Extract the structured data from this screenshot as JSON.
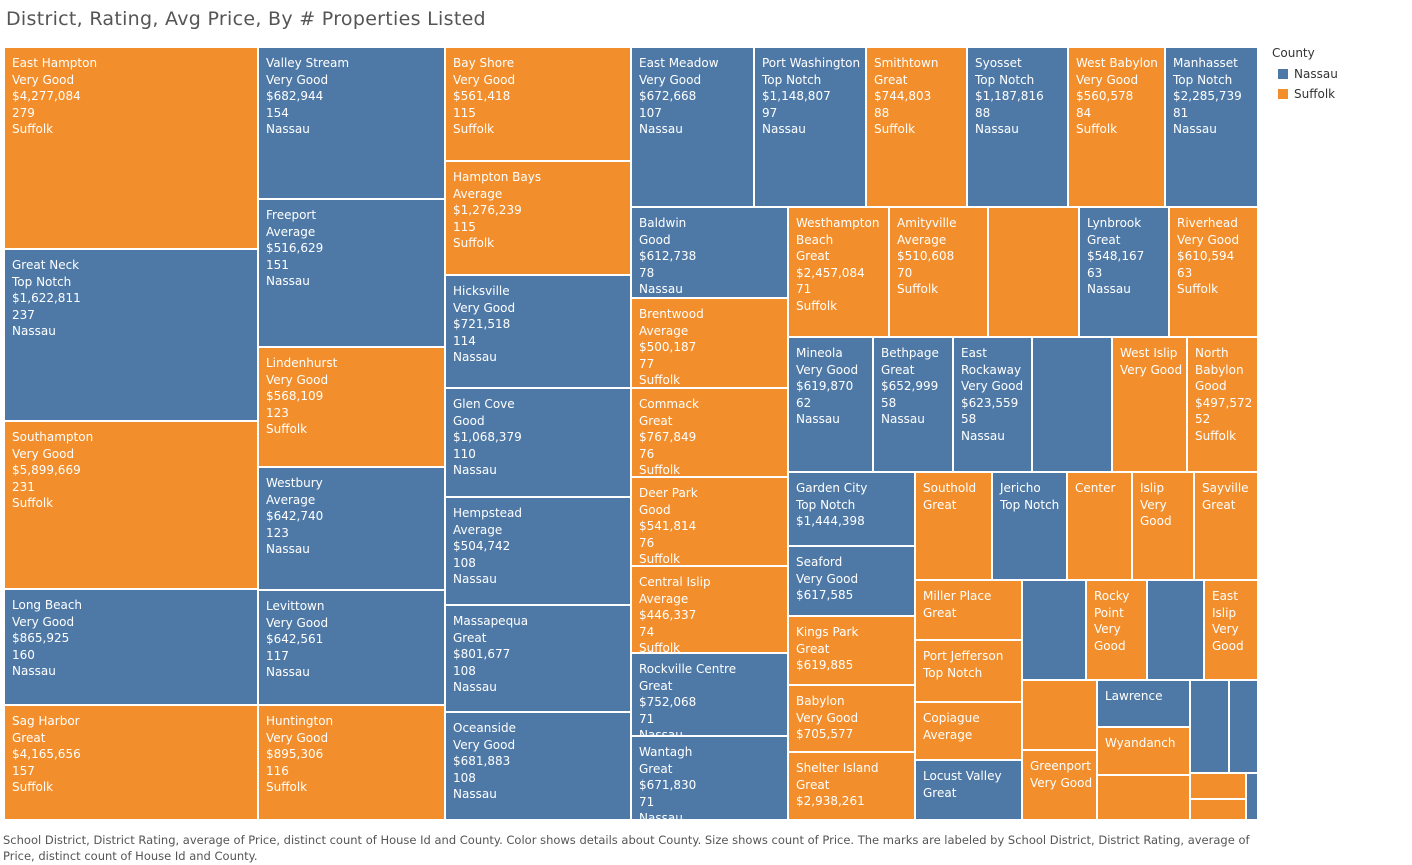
{
  "title": "District, Rating, Avg Price, By # Properties Listed",
  "caption": "School District, District Rating, average of Price, distinct count of House Id and County.  Color shows details about County.  Size shows count of Price.  The marks are labeled by School District, District Rating, average of Price, distinct count of House Id and County.",
  "colors": {
    "Nassau": "#4e79a7",
    "Suffolk": "#f28e2b"
  },
  "legend": {
    "title": "County",
    "items": [
      "Nassau",
      "Suffolk"
    ]
  },
  "chart_data": {
    "type": "treemap",
    "size_measure": "count of Price",
    "color_measure": "County",
    "labels": [
      "School District",
      "District Rating",
      "average of Price",
      "distinct count of House Id",
      "County"
    ],
    "items": [
      {
        "district": "East Hampton",
        "rating": "Very Good",
        "avg_price": "$4,277,084",
        "count": "279",
        "county": "Suffolk"
      },
      {
        "district": "Great Neck",
        "rating": "Top Notch",
        "avg_price": "$1,622,811",
        "count": "237",
        "county": "Nassau"
      },
      {
        "district": "Southampton",
        "rating": "Very Good",
        "avg_price": "$5,899,669",
        "count": "231",
        "county": "Suffolk"
      },
      {
        "district": "Long Beach",
        "rating": "Very Good",
        "avg_price": "$865,925",
        "count": "160",
        "county": "Nassau"
      },
      {
        "district": "Sag Harbor",
        "rating": "Great",
        "avg_price": "$4,165,656",
        "count": "157",
        "county": "Suffolk"
      },
      {
        "district": "Valley Stream",
        "rating": "Very Good",
        "avg_price": "$682,944",
        "count": "154",
        "county": "Nassau"
      },
      {
        "district": "Freeport",
        "rating": "Average",
        "avg_price": "$516,629",
        "count": "151",
        "county": "Nassau"
      },
      {
        "district": "Lindenhurst",
        "rating": "Very Good",
        "avg_price": "$568,109",
        "count": "123",
        "county": "Suffolk"
      },
      {
        "district": "Westbury",
        "rating": "Average",
        "avg_price": "$642,740",
        "count": "123",
        "county": "Nassau"
      },
      {
        "district": "Levittown",
        "rating": "Very Good",
        "avg_price": "$642,561",
        "count": "117",
        "county": "Nassau"
      },
      {
        "district": "Huntington",
        "rating": "Very Good",
        "avg_price": "$895,306",
        "count": "116",
        "county": "Suffolk"
      },
      {
        "district": "Bay Shore",
        "rating": "Very Good",
        "avg_price": "$561,418",
        "count": "115",
        "county": "Suffolk"
      },
      {
        "district": "Hampton Bays",
        "rating": "Average",
        "avg_price": "$1,276,239",
        "count": "115",
        "county": "Suffolk"
      },
      {
        "district": "Hicksville",
        "rating": "Very Good",
        "avg_price": "$721,518",
        "count": "114",
        "county": "Nassau"
      },
      {
        "district": "Glen Cove",
        "rating": "Good",
        "avg_price": "$1,068,379",
        "count": "110",
        "county": "Nassau"
      },
      {
        "district": "Hempstead",
        "rating": "Average",
        "avg_price": "$504,742",
        "count": "108",
        "county": "Nassau"
      },
      {
        "district": "Massapequa",
        "rating": "Great",
        "avg_price": "$801,677",
        "count": "108",
        "county": "Nassau"
      },
      {
        "district": "Oceanside",
        "rating": "Very Good",
        "avg_price": "$681,883",
        "count": "108",
        "county": "Nassau"
      },
      {
        "district": "East Meadow",
        "rating": "Very Good",
        "avg_price": "$672,668",
        "count": "107",
        "county": "Nassau"
      },
      {
        "district": "Port Washington",
        "rating": "Top Notch",
        "avg_price": "$1,148,807",
        "count": "97",
        "county": "Nassau"
      },
      {
        "district": "Smithtown",
        "rating": "Great",
        "avg_price": "$744,803",
        "count": "88",
        "county": "Suffolk"
      },
      {
        "district": "Syosset",
        "rating": "Top Notch",
        "avg_price": "$1,187,816",
        "count": "88",
        "county": "Nassau"
      },
      {
        "district": "West Babylon",
        "rating": "Very Good",
        "avg_price": "$560,578",
        "count": "84",
        "county": "Suffolk"
      },
      {
        "district": "Manhasset",
        "rating": "Top Notch",
        "avg_price": "$2,285,739",
        "count": "81",
        "county": "Nassau"
      },
      {
        "district": "Baldwin",
        "rating": "Good",
        "avg_price": "$612,738",
        "count": "78",
        "county": "Nassau"
      },
      {
        "district": "Brentwood",
        "rating": "Average",
        "avg_price": "$500,187",
        "count": "77",
        "county": "Suffolk"
      },
      {
        "district": "Commack",
        "rating": "Great",
        "avg_price": "$767,849",
        "count": "76",
        "county": "Suffolk"
      },
      {
        "district": "Deer Park",
        "rating": "Good",
        "avg_price": "$541,814",
        "count": "76",
        "county": "Suffolk"
      },
      {
        "district": "Central Islip",
        "rating": "Average",
        "avg_price": "$446,337",
        "count": "74",
        "county": "Suffolk"
      },
      {
        "district": "Rockville Centre",
        "rating": "Great",
        "avg_price": "$752,068",
        "count": "71",
        "county": "Nassau"
      },
      {
        "district": "Wantagh",
        "rating": "Great",
        "avg_price": "$671,830",
        "count": "71",
        "county": "Nassau"
      },
      {
        "district": "Westhampton Beach",
        "rating": "Great",
        "avg_price": "$2,457,084",
        "count": "71",
        "county": "Suffolk"
      },
      {
        "district": "Amityville",
        "rating": "Average",
        "avg_price": "$510,608",
        "count": "70",
        "county": "Suffolk"
      },
      {
        "district": "",
        "rating": "",
        "avg_price": "",
        "count": "",
        "county": "Suffolk"
      },
      {
        "district": "Lynbrook",
        "rating": "Great",
        "avg_price": "$548,167",
        "count": "63",
        "county": "Nassau"
      },
      {
        "district": "Riverhead",
        "rating": "Very Good",
        "avg_price": "$610,594",
        "count": "63",
        "county": "Suffolk"
      },
      {
        "district": "Mineola",
        "rating": "Very Good",
        "avg_price": "$619,870",
        "count": "62",
        "county": "Nassau"
      },
      {
        "district": "Bethpage",
        "rating": "Great",
        "avg_price": "$652,999",
        "count": "58",
        "county": "Nassau"
      },
      {
        "district": "East Rockaway",
        "rating": "Very Good",
        "avg_price": "$623,559",
        "count": "58",
        "county": "Nassau"
      },
      {
        "district": "",
        "rating": "",
        "avg_price": "",
        "count": "",
        "county": "Nassau"
      },
      {
        "district": "West Islip",
        "rating": "Very Good",
        "avg_price": "",
        "count": "",
        "county": "Suffolk"
      },
      {
        "district": "North Babylon",
        "rating": "Good",
        "avg_price": "$497,572",
        "count": "52",
        "county": "Suffolk"
      },
      {
        "district": "Garden City",
        "rating": "Top Notch",
        "avg_price": "$1,444,398",
        "count": "",
        "county": "Nassau"
      },
      {
        "district": "Seaford",
        "rating": "Very Good",
        "avg_price": "$617,585",
        "count": "",
        "county": "Nassau"
      },
      {
        "district": "Kings Park",
        "rating": "Great",
        "avg_price": "$619,885",
        "count": "",
        "county": "Suffolk"
      },
      {
        "district": "Babylon",
        "rating": "Very Good",
        "avg_price": "$705,577",
        "count": "",
        "county": "Suffolk"
      },
      {
        "district": "Shelter Island",
        "rating": "Great",
        "avg_price": "$2,938,261",
        "count": "",
        "county": "Suffolk"
      },
      {
        "district": "Southold",
        "rating": "Great",
        "avg_price": "",
        "count": "",
        "county": "Suffolk"
      },
      {
        "district": "Jericho",
        "rating": "Top Notch",
        "avg_price": "",
        "count": "",
        "county": "Nassau"
      },
      {
        "district": "Center",
        "rating": "",
        "avg_price": "",
        "count": "",
        "county": "Suffolk"
      },
      {
        "district": "Islip",
        "rating": "Very Good",
        "avg_price": "",
        "count": "",
        "county": "Suffolk"
      },
      {
        "district": "Sayville",
        "rating": "Great",
        "avg_price": "",
        "count": "",
        "county": "Suffolk"
      },
      {
        "district": "Miller Place",
        "rating": "Great",
        "avg_price": "",
        "count": "",
        "county": "Suffolk"
      },
      {
        "district": "Port Jefferson",
        "rating": "Top Notch",
        "avg_price": "",
        "count": "",
        "county": "Suffolk"
      },
      {
        "district": "Copiague",
        "rating": "Average",
        "avg_price": "",
        "count": "",
        "county": "Suffolk"
      },
      {
        "district": "Locust Valley",
        "rating": "Great",
        "avg_price": "",
        "count": "",
        "county": "Nassau"
      },
      {
        "district": "",
        "rating": "",
        "avg_price": "",
        "count": "",
        "county": "Nassau"
      },
      {
        "district": "Rocky Point",
        "rating": "Very Good",
        "avg_price": "",
        "count": "",
        "county": "Suffolk"
      },
      {
        "district": "",
        "rating": "",
        "avg_price": "",
        "count": "",
        "county": "Nassau"
      },
      {
        "district": "East Islip",
        "rating": "Very Good",
        "avg_price": "",
        "count": "",
        "county": "Suffolk"
      },
      {
        "district": "",
        "rating": "",
        "avg_price": "",
        "count": "",
        "county": "Suffolk"
      },
      {
        "district": "Greenport",
        "rating": "Very Good",
        "avg_price": "",
        "count": "",
        "county": "Suffolk"
      },
      {
        "district": "Lawrence",
        "rating": "",
        "avg_price": "",
        "count": "",
        "county": "Nassau"
      },
      {
        "district": "Wyandanch",
        "rating": "",
        "avg_price": "",
        "count": "",
        "county": "Suffolk"
      },
      {
        "district": "",
        "rating": "",
        "avg_price": "",
        "count": "",
        "county": "Suffolk"
      },
      {
        "district": "",
        "rating": "",
        "avg_price": "",
        "count": "",
        "county": "Nassau"
      },
      {
        "district": "",
        "rating": "",
        "avg_price": "",
        "count": "",
        "county": "Nassau"
      },
      {
        "district": "",
        "rating": "",
        "avg_price": "",
        "count": "",
        "county": "Suffolk"
      },
      {
        "district": "",
        "rating": "",
        "avg_price": "",
        "count": "",
        "county": "Suffolk"
      },
      {
        "district": "",
        "rating": "",
        "avg_price": "",
        "count": "",
        "county": "Nassau"
      }
    ]
  }
}
